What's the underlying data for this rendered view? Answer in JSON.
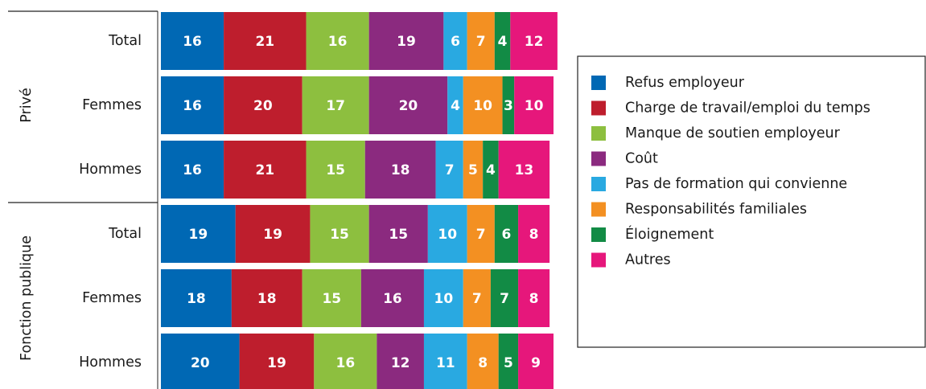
{
  "chart_data": {
    "type": "stacked-bar-horizontal",
    "groups": [
      {
        "label": "Privé",
        "categories": [
          "Total",
          "Femmes",
          "Hommes"
        ]
      },
      {
        "label": "Fonction publique",
        "categories": [
          "Total",
          "Femmes",
          "Hommes"
        ]
      }
    ],
    "xlim": [
      0,
      100
    ],
    "legend": "right",
    "series": [
      {
        "name": "Refus employeur",
        "color": "#0068b4",
        "values": [
          16,
          16,
          16,
          19,
          18,
          20
        ]
      },
      {
        "name": "Charge de travail/emploi du temps",
        "color": "#be1e2d",
        "values": [
          21,
          20,
          21,
          19,
          18,
          19
        ]
      },
      {
        "name": "Manque de soutien employeur",
        "color": "#8dbf3f",
        "values": [
          16,
          17,
          15,
          15,
          15,
          16
        ]
      },
      {
        "name": "Coût",
        "color": "#8b2a7f",
        "values": [
          19,
          20,
          18,
          15,
          16,
          12
        ]
      },
      {
        "name": "Pas de formation qui convienne",
        "color": "#29a9e1",
        "values": [
          6,
          4,
          7,
          10,
          10,
          11
        ]
      },
      {
        "name": "Responsabilités familiales",
        "color": "#f39022",
        "values": [
          7,
          10,
          5,
          7,
          7,
          8
        ]
      },
      {
        "name": "Éloignement",
        "color": "#128b45",
        "values": [
          4,
          3,
          4,
          6,
          7,
          5
        ]
      },
      {
        "name": "Autres",
        "color": "#e6177b",
        "values": [
          12,
          10,
          13,
          8,
          8,
          9
        ]
      }
    ]
  }
}
